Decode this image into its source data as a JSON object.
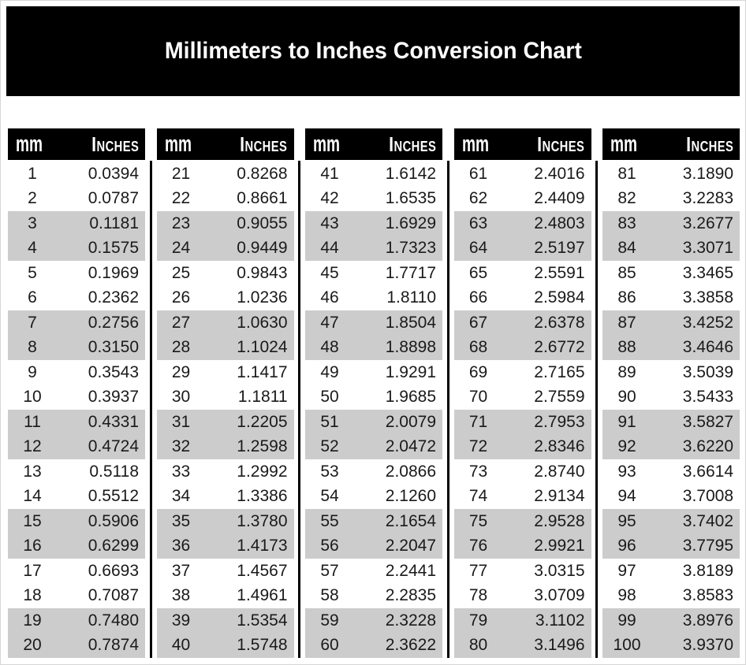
{
  "title": "Millimeters to Inches Conversion Chart",
  "table": {
    "header": {
      "mm_label": "mm",
      "inches_label": "Inches"
    },
    "block_count": 5,
    "rows_per_block": 20
  },
  "colors": {
    "banner_bg": "#000000",
    "header_bg": "#000000",
    "header_text": "#ffffff",
    "stripe": "#cccccc",
    "divider": "#000000",
    "text": "#1a1a1a"
  },
  "chart_data": {
    "type": "table",
    "title": "Millimeters to Inches Conversion Chart",
    "columns": [
      "mm",
      "Inches"
    ],
    "layout": "5 column blocks of 20 rows each; rows striped in alternating pairs (2 white, 2 gray)",
    "rows": [
      [
        1,
        "0.0394"
      ],
      [
        2,
        "0.0787"
      ],
      [
        3,
        "0.1181"
      ],
      [
        4,
        "0.1575"
      ],
      [
        5,
        "0.1969"
      ],
      [
        6,
        "0.2362"
      ],
      [
        7,
        "0.2756"
      ],
      [
        8,
        "0.3150"
      ],
      [
        9,
        "0.3543"
      ],
      [
        10,
        "0.3937"
      ],
      [
        11,
        "0.4331"
      ],
      [
        12,
        "0.4724"
      ],
      [
        13,
        "0.5118"
      ],
      [
        14,
        "0.5512"
      ],
      [
        15,
        "0.5906"
      ],
      [
        16,
        "0.6299"
      ],
      [
        17,
        "0.6693"
      ],
      [
        18,
        "0.7087"
      ],
      [
        19,
        "0.7480"
      ],
      [
        20,
        "0.7874"
      ],
      [
        21,
        "0.8268"
      ],
      [
        22,
        "0.8661"
      ],
      [
        23,
        "0.9055"
      ],
      [
        24,
        "0.9449"
      ],
      [
        25,
        "0.9843"
      ],
      [
        26,
        "1.0236"
      ],
      [
        27,
        "1.0630"
      ],
      [
        28,
        "1.1024"
      ],
      [
        29,
        "1.1417"
      ],
      [
        30,
        "1.1811"
      ],
      [
        31,
        "1.2205"
      ],
      [
        32,
        "1.2598"
      ],
      [
        33,
        "1.2992"
      ],
      [
        34,
        "1.3386"
      ],
      [
        35,
        "1.3780"
      ],
      [
        36,
        "1.4173"
      ],
      [
        37,
        "1.4567"
      ],
      [
        38,
        "1.4961"
      ],
      [
        39,
        "1.5354"
      ],
      [
        40,
        "1.5748"
      ],
      [
        41,
        "1.6142"
      ],
      [
        42,
        "1.6535"
      ],
      [
        43,
        "1.6929"
      ],
      [
        44,
        "1.7323"
      ],
      [
        45,
        "1.7717"
      ],
      [
        46,
        "1.8110"
      ],
      [
        47,
        "1.8504"
      ],
      [
        48,
        "1.8898"
      ],
      [
        49,
        "1.9291"
      ],
      [
        50,
        "1.9685"
      ],
      [
        51,
        "2.0079"
      ],
      [
        52,
        "2.0472"
      ],
      [
        53,
        "2.0866"
      ],
      [
        54,
        "2.1260"
      ],
      [
        55,
        "2.1654"
      ],
      [
        56,
        "2.2047"
      ],
      [
        57,
        "2.2441"
      ],
      [
        58,
        "2.2835"
      ],
      [
        59,
        "2.3228"
      ],
      [
        60,
        "2.3622"
      ],
      [
        61,
        "2.4016"
      ],
      [
        62,
        "2.4409"
      ],
      [
        63,
        "2.4803"
      ],
      [
        64,
        "2.5197"
      ],
      [
        65,
        "2.5591"
      ],
      [
        66,
        "2.5984"
      ],
      [
        67,
        "2.6378"
      ],
      [
        68,
        "2.6772"
      ],
      [
        69,
        "2.7165"
      ],
      [
        70,
        "2.7559"
      ],
      [
        71,
        "2.7953"
      ],
      [
        72,
        "2.8346"
      ],
      [
        73,
        "2.8740"
      ],
      [
        74,
        "2.9134"
      ],
      [
        75,
        "2.9528"
      ],
      [
        76,
        "2.9921"
      ],
      [
        77,
        "3.0315"
      ],
      [
        78,
        "3.0709"
      ],
      [
        79,
        "3.1102"
      ],
      [
        80,
        "3.1496"
      ],
      [
        81,
        "3.1890"
      ],
      [
        82,
        "3.2283"
      ],
      [
        83,
        "3.2677"
      ],
      [
        84,
        "3.3071"
      ],
      [
        85,
        "3.3465"
      ],
      [
        86,
        "3.3858"
      ],
      [
        87,
        "3.4252"
      ],
      [
        88,
        "3.4646"
      ],
      [
        89,
        "3.5039"
      ],
      [
        90,
        "3.5433"
      ],
      [
        91,
        "3.5827"
      ],
      [
        92,
        "3.6220"
      ],
      [
        93,
        "3.6614"
      ],
      [
        94,
        "3.7008"
      ],
      [
        95,
        "3.7402"
      ],
      [
        96,
        "3.7795"
      ],
      [
        97,
        "3.8189"
      ],
      [
        98,
        "3.8583"
      ],
      [
        99,
        "3.8976"
      ],
      [
        100,
        "3.9370"
      ]
    ]
  }
}
